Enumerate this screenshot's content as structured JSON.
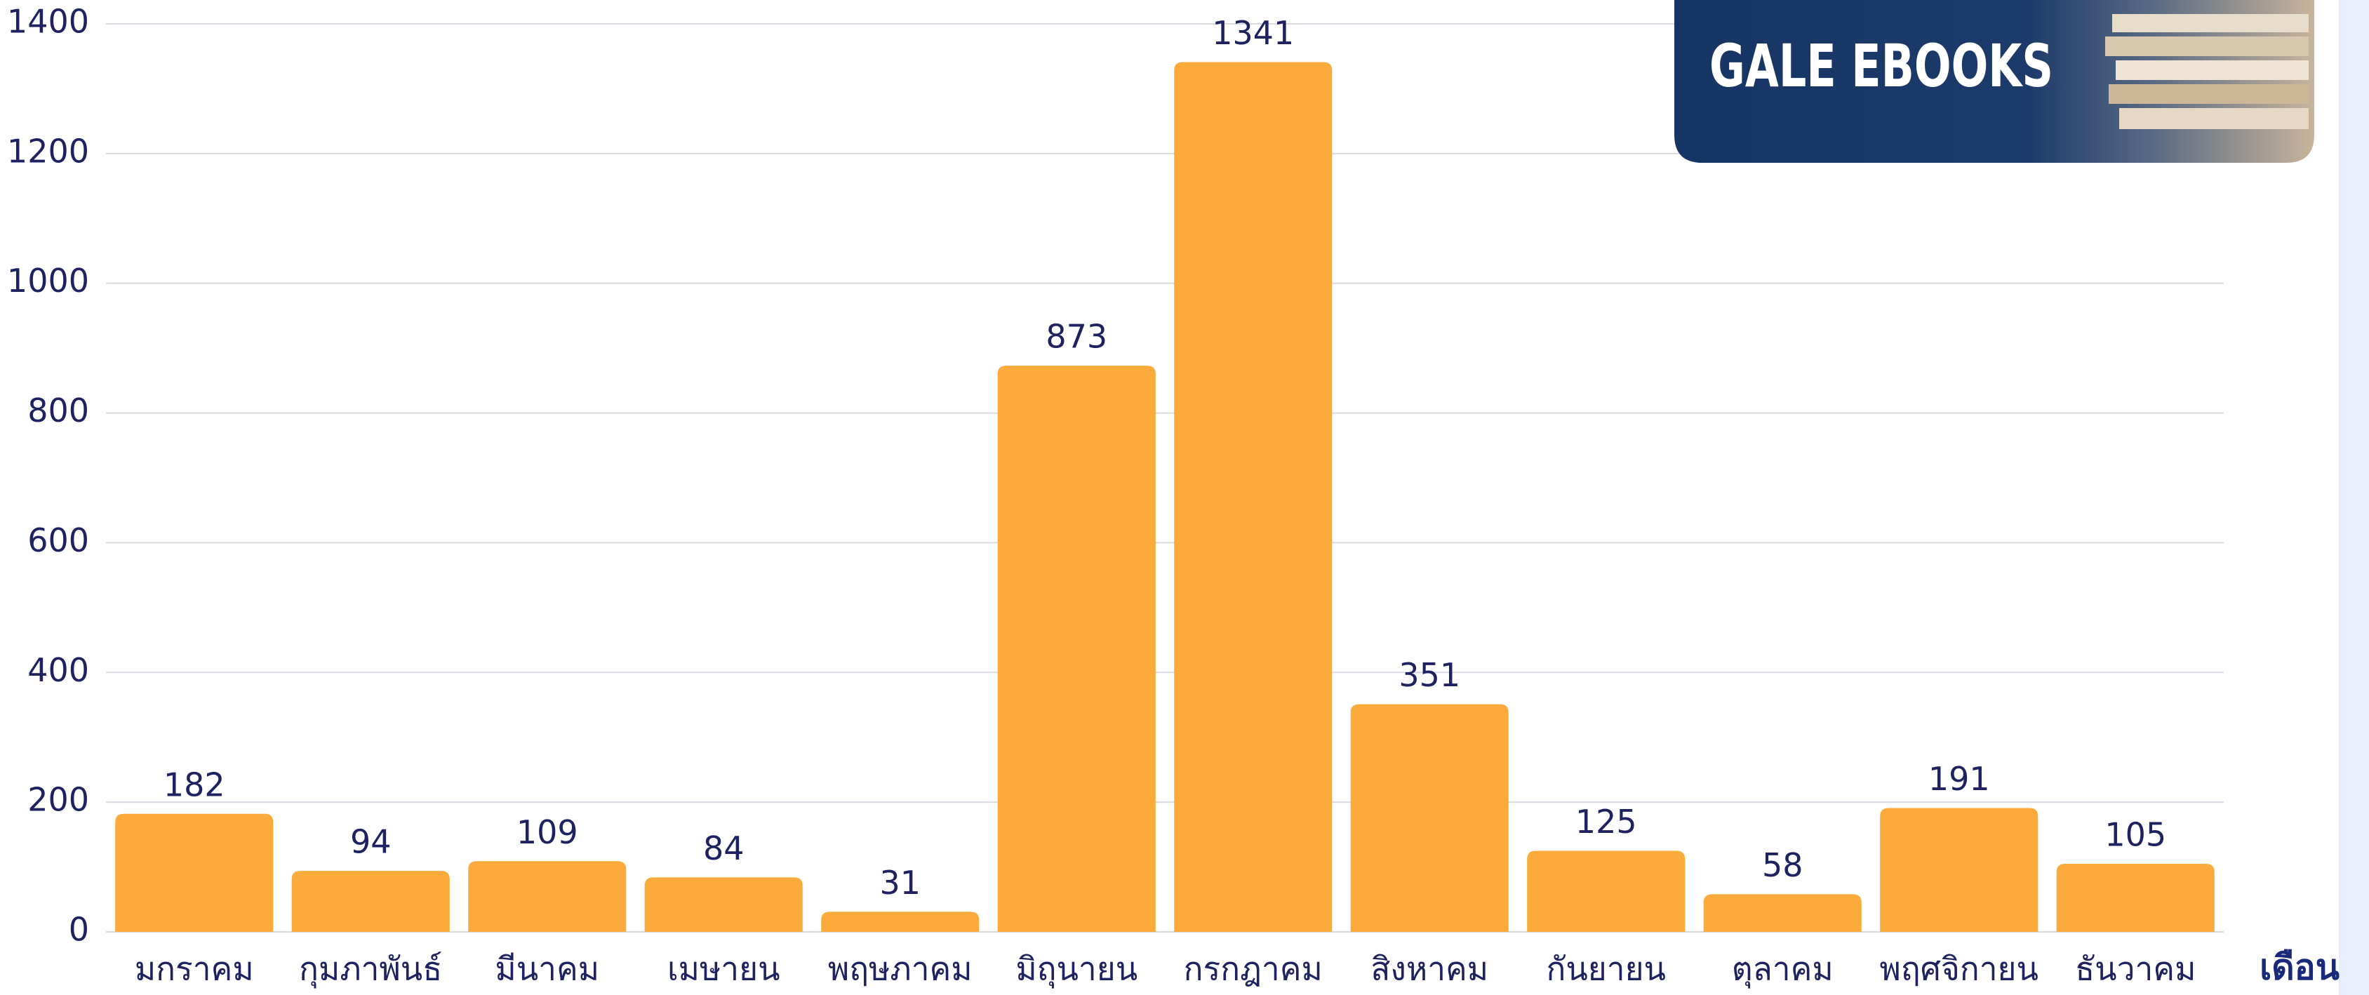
{
  "chart_data": {
    "type": "bar",
    "categories": [
      "มกราคม",
      "กุมภาพันธ์",
      "มีนาคม",
      "เมษายน",
      "พฤษภาคม",
      "มิถุนายน",
      "กรกฎาคม",
      "สิงหาคม",
      "กันยายน",
      "ตุลาคม",
      "พฤศจิกายน",
      "ธันวาคม"
    ],
    "values": [
      182,
      94,
      109,
      84,
      31,
      873,
      1341,
      351,
      125,
      58,
      191,
      105
    ],
    "color": "#fbab3c",
    "ylim": [
      0,
      1400
    ],
    "yticks": [
      0,
      200,
      400,
      600,
      800,
      1000,
      1200,
      1400
    ],
    "grid": true,
    "x_label": "เดือน"
  },
  "banner": {
    "text": "GALE EBOOKS"
  }
}
